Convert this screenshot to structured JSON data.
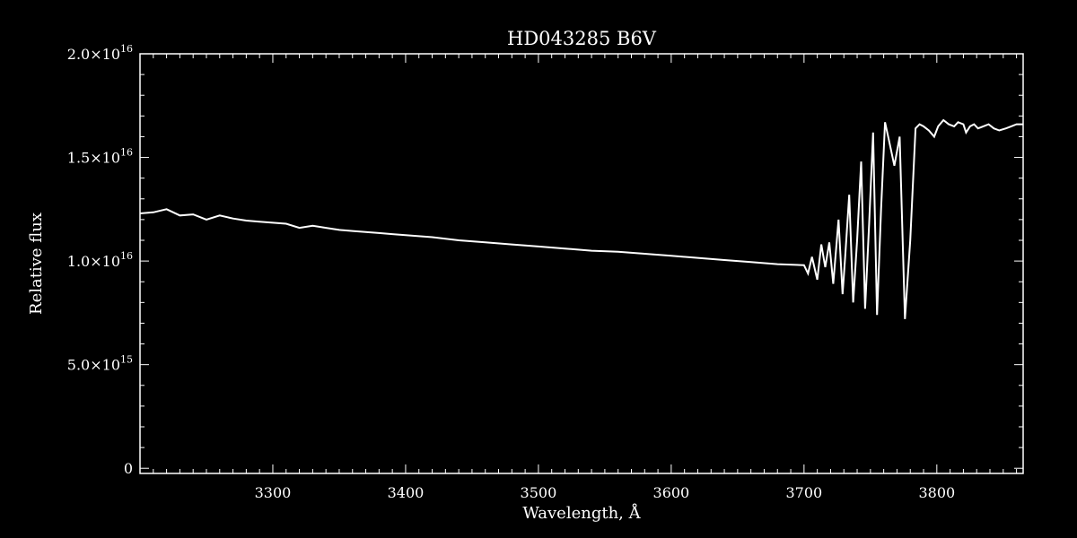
{
  "chart_data": {
    "type": "line",
    "title": "HD043285   B6V",
    "xlabel": "Wavelength, Å",
    "ylabel": "Relative flux",
    "xlim": [
      3200,
      3865
    ],
    "ylim": [
      -250000000000000.0,
      2e+16
    ],
    "x_ticks": [
      3300,
      3400,
      3500,
      3600,
      3700,
      3800
    ],
    "y_ticks": [
      {
        "value": 0,
        "mantissa": "0",
        "exponent": ""
      },
      {
        "value": 5000000000000000.0,
        "mantissa": "5.0×10",
        "exponent": "15"
      },
      {
        "value": 1e+16,
        "mantissa": "1.0×10",
        "exponent": "16"
      },
      {
        "value": 1.5e+16,
        "mantissa": "1.5×10",
        "exponent": "16"
      },
      {
        "value": 2e+16,
        "mantissa": "2.0×10",
        "exponent": "16"
      }
    ],
    "line_color": "#ffffff",
    "background": "#000000",
    "series": [
      {
        "x": [
          3200,
          3210,
          3220,
          3230,
          3240,
          3250,
          3260,
          3270,
          3280,
          3290,
          3300,
          3310,
          3320,
          3330,
          3340,
          3350,
          3360,
          3370,
          3380,
          3390,
          3400,
          3420,
          3440,
          3460,
          3480,
          3500,
          3520,
          3540,
          3560,
          3580,
          3600,
          3620,
          3640,
          3660,
          3680,
          3700,
          3703,
          3706,
          3710,
          3713,
          3716,
          3719,
          3722,
          3726,
          3729,
          3731,
          3734,
          3737,
          3740,
          3743,
          3746,
          3749,
          3752,
          3755,
          3758,
          3761,
          3764,
          3768,
          3772,
          3776,
          3780,
          3784,
          3787,
          3790,
          3794,
          3798,
          3801,
          3805,
          3809,
          3813,
          3816,
          3820,
          3822,
          3825,
          3828,
          3831,
          3835,
          3839,
          3843,
          3847,
          3852,
          3856,
          3860,
          3863,
          3865
        ],
        "y": [
          1.23e+16,
          1.235e+16,
          1.25e+16,
          1.22e+16,
          1.225e+16,
          1.2e+16,
          1.22e+16,
          1.205e+16,
          1.195e+16,
          1.19e+16,
          1.185e+16,
          1.18e+16,
          1.16e+16,
          1.17e+16,
          1.16e+16,
          1.15e+16,
          1.145e+16,
          1.14e+16,
          1.135e+16,
          1.13e+16,
          1.125e+16,
          1.115e+16,
          1.1e+16,
          1.09e+16,
          1.08e+16,
          1.07e+16,
          1.06e+16,
          1.05e+16,
          1.045e+16,
          1.035e+16,
          1.025e+16,
          1.015e+16,
          1.005e+16,
          9950000000000000.0,
          9850000000000000.0,
          9800000000000000.0,
          9400000000000000.0,
          1.02e+16,
          9100000000000000.0,
          1.08e+16,
          9700000000000000.0,
          1.09e+16,
          8900000000000000.0,
          1.2e+16,
          8400000000000000.0,
          1.02e+16,
          1.32e+16,
          8000000000000000.0,
          1.1e+16,
          1.48e+16,
          7700000000000000.0,
          1.18e+16,
          1.62e+16,
          7400000000000000.0,
          1.25e+16,
          1.67e+16,
          1.58e+16,
          1.46e+16,
          1.6e+16,
          7200000000000000.0,
          1.1e+16,
          1.64e+16,
          1.66e+16,
          1.65e+16,
          1.63e+16,
          1.6e+16,
          1.65e+16,
          1.68e+16,
          1.66e+16,
          1.65e+16,
          1.67e+16,
          1.66e+16,
          1.62e+16,
          1.65e+16,
          1.66e+16,
          1.64e+16,
          1.65e+16,
          1.66e+16,
          1.64e+16,
          1.63e+16,
          1.64e+16,
          1.65e+16,
          1.66e+16,
          1.66e+16,
          1.66e+16
        ],
        "note": ""
      }
    ]
  }
}
